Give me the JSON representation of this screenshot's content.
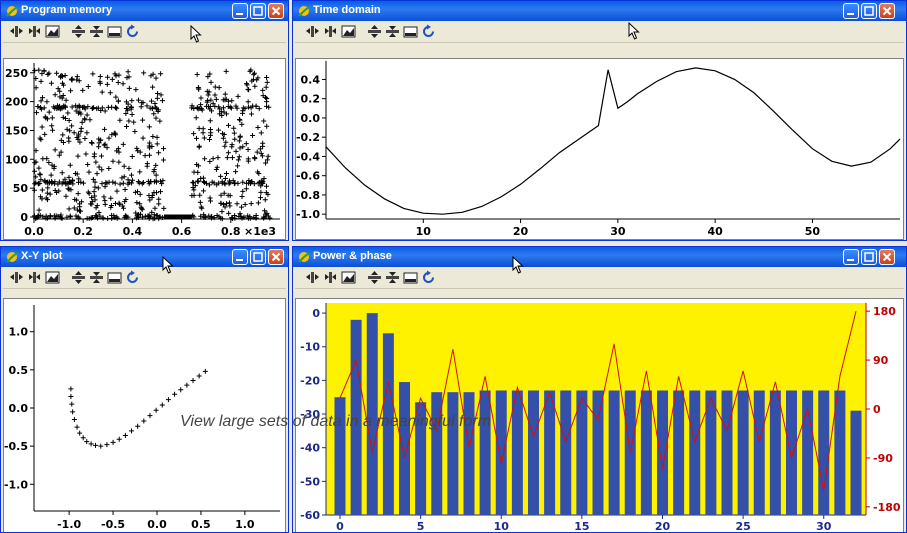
{
  "windows": {
    "program_memory": {
      "title": "Program memory"
    },
    "time_domain": {
      "title": "Time domain"
    },
    "xy_plot": {
      "title": "X-Y plot"
    },
    "power_phase": {
      "title": "Power & phase"
    }
  },
  "toolbar_icons": [
    "zoom-in-x-icon",
    "zoom-out-x-icon",
    "autoscale-icon",
    "zoom-in-y-icon",
    "zoom-out-y-icon",
    "fit-icon",
    "refresh-icon"
  ],
  "caption": "View large sets of data in a meaningful form",
  "colors": {
    "titlebar": "#0a5be6",
    "power_bg": "#fff200",
    "bar": "#3550a8",
    "phase": "#d01010",
    "phase_axis": "#c00000",
    "power_axis": "#1a2a8a"
  },
  "chart_data": [
    {
      "id": "program_memory",
      "type": "scatter",
      "marker": "+",
      "x_ticks": [
        "0.0",
        "0.2",
        "0.4",
        "0.6",
        "0.8"
      ],
      "x_multiplier": "×1e3",
      "xlim": [
        0,
        1000
      ],
      "y_ticks": [
        "0",
        "50",
        "100",
        "150",
        "200",
        "250"
      ],
      "ylim": [
        0,
        260
      ]
    },
    {
      "id": "time_domain",
      "type": "line",
      "x_ticks": [
        "10",
        "20",
        "30",
        "40",
        "50"
      ],
      "xlim": [
        0,
        59
      ],
      "y_ticks": [
        "0.4",
        "0.2",
        "0.0",
        "-0.2",
        "-0.4",
        "-0.6",
        "-0.8",
        "-1.0"
      ],
      "ylim": [
        -1.05,
        0.55
      ],
      "x": [
        0,
        2,
        4,
        6,
        8,
        10,
        12,
        14,
        16,
        18,
        20,
        22,
        24,
        26,
        28,
        29,
        30,
        31,
        32,
        34,
        36,
        38,
        40,
        42,
        44,
        46,
        48,
        50,
        52,
        54,
        56,
        58,
        59
      ],
      "y": [
        -0.3,
        -0.52,
        -0.7,
        -0.84,
        -0.94,
        -0.99,
        -1.0,
        -0.98,
        -0.92,
        -0.82,
        -0.69,
        -0.53,
        -0.36,
        -0.22,
        -0.08,
        0.5,
        0.1,
        0.17,
        0.25,
        0.38,
        0.48,
        0.52,
        0.49,
        0.4,
        0.26,
        0.07,
        -0.13,
        -0.32,
        -0.45,
        -0.5,
        -0.46,
        -0.32,
        -0.22
      ]
    },
    {
      "id": "xy_plot",
      "type": "scatter",
      "marker": "+",
      "x_ticks": [
        "-1.0",
        "-0.5",
        "0.0",
        "0.5",
        "1.0"
      ],
      "xlim": [
        -1.4,
        1.4
      ],
      "y_ticks": [
        "1.0",
        "0.5",
        "0.0",
        "-0.5",
        "-1.0"
      ],
      "ylim": [
        -1.35,
        1.35
      ],
      "x": [
        -0.98,
        -0.98,
        -0.97,
        -0.96,
        -0.94,
        -0.91,
        -0.88,
        -0.84,
        -0.8,
        -0.75,
        -0.7,
        -0.64,
        -0.57,
        -0.5,
        -0.43,
        -0.36,
        -0.29,
        -0.22,
        -0.15,
        -0.08,
        -0.01,
        0.06,
        0.13,
        0.2,
        0.27,
        0.34,
        0.41,
        0.48,
        0.55
      ],
      "y": [
        0.25,
        0.15,
        0.05,
        -0.05,
        -0.15,
        -0.25,
        -0.33,
        -0.39,
        -0.44,
        -0.47,
        -0.49,
        -0.5,
        -0.48,
        -0.45,
        -0.41,
        -0.36,
        -0.3,
        -0.24,
        -0.17,
        -0.1,
        -0.03,
        0.04,
        0.11,
        0.18,
        0.24,
        0.3,
        0.36,
        0.42,
        0.48
      ]
    },
    {
      "id": "power_phase",
      "type": "bar",
      "categories": [
        0,
        1,
        2,
        3,
        4,
        5,
        6,
        7,
        8,
        9,
        10,
        11,
        12,
        13,
        14,
        15,
        16,
        17,
        18,
        19,
        20,
        21,
        22,
        23,
        24,
        25,
        26,
        27,
        28,
        29,
        30,
        31,
        32
      ],
      "x_ticks": [
        "0",
        "5",
        "10",
        "15",
        "20",
        "25",
        "30"
      ],
      "left_ticks": [
        "0",
        "-10",
        "-20",
        "-30",
        "-40",
        "-50",
        "-60"
      ],
      "ylim": [
        -60,
        3
      ],
      "right_ticks": [
        "180",
        "90",
        "0",
        "-90",
        "-180"
      ],
      "y2lim": [
        -195,
        195
      ],
      "series": [
        {
          "values": [
            -25,
            -2,
            0,
            -6,
            -20.5,
            -26.5,
            -23.5,
            -23.5,
            -23.5,
            -23,
            -23,
            -23,
            -23,
            -23,
            -23,
            -23,
            -23,
            -23,
            -23,
            -23,
            -23,
            -23,
            -23,
            -23,
            -23,
            -23,
            -23,
            -23,
            -23,
            -23,
            -23,
            -23,
            -29
          ]
        },
        {
          "values": [
            20,
            90,
            -80,
            50,
            -90,
            20,
            -40,
            110,
            -70,
            60,
            -100,
            40,
            -50,
            30,
            -60,
            20,
            -20,
            120,
            -80,
            70,
            -110,
            60,
            -60,
            20,
            -40,
            70,
            -60,
            50,
            -90,
            0,
            -150,
            60,
            180
          ]
        }
      ]
    }
  ]
}
